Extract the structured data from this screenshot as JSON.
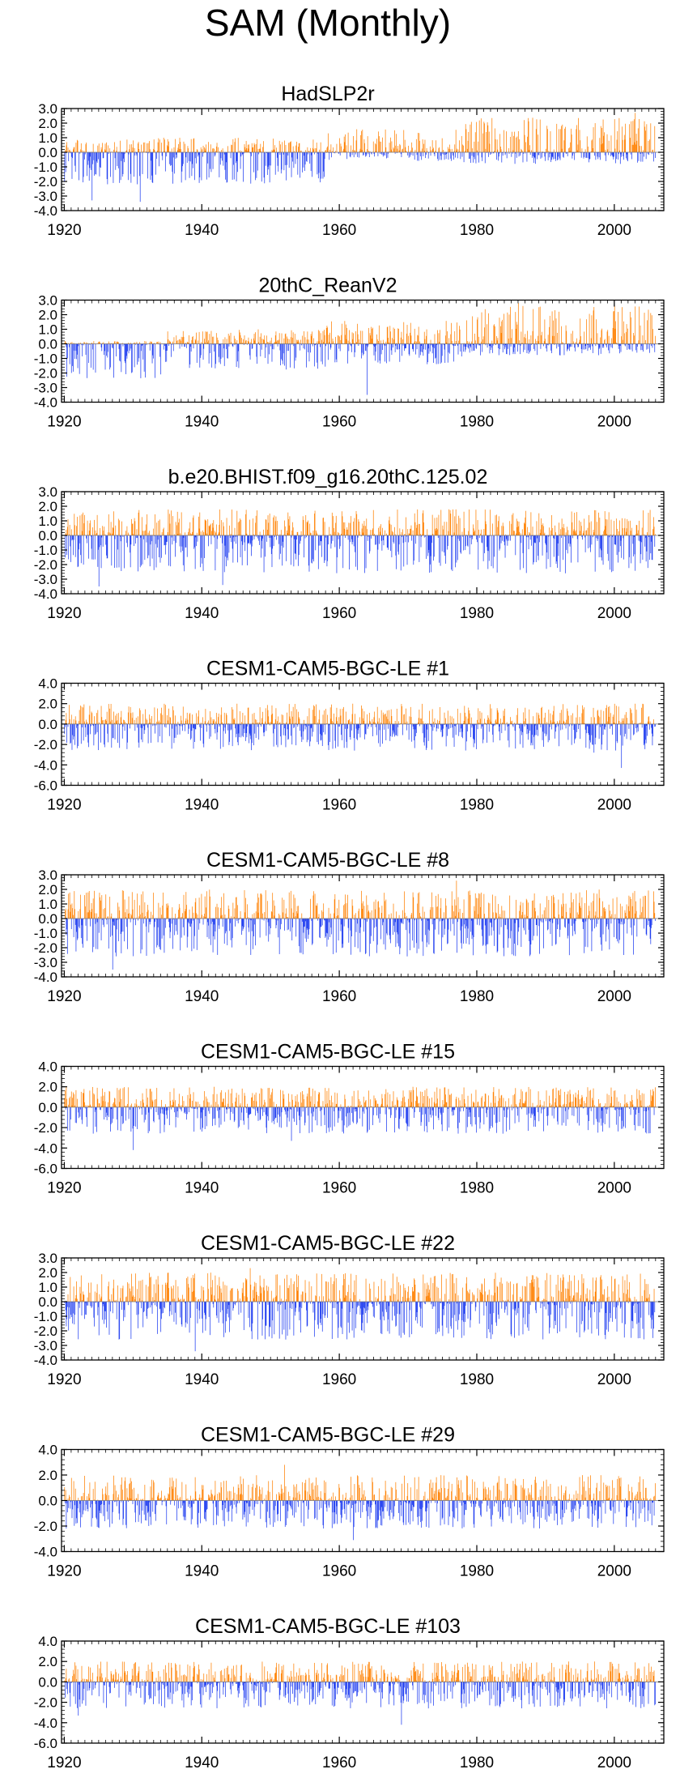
{
  "title": "SAM (Monthly)",
  "colors": {
    "positive": "#ff8000",
    "negative": "#1e3cf0",
    "axis": "#000000"
  },
  "x_ticks": [
    "1920",
    "1940",
    "1960",
    "1980",
    "2000"
  ],
  "chart_data": [
    {
      "type": "bar",
      "title": "HadSLP2r",
      "x_range": [
        1920,
        2005
      ],
      "ylim": [
        -4.0,
        3.0
      ],
      "y_ticks": [
        "3.0",
        "2.0",
        "1.0",
        "0.0",
        "-1.0",
        "-2.0",
        "-3.0",
        "-4.0"
      ],
      "y_tick_values": [
        3,
        2,
        1,
        0,
        -1,
        -2,
        -3,
        -4
      ],
      "series_shape": [
        {
          "from": 1920,
          "to": 1958,
          "pos_max": 1.0,
          "neg_max": -2.2
        },
        {
          "from": 1958,
          "to": 1978,
          "pos_max": 1.6,
          "neg_max": -0.6
        },
        {
          "from": 1978,
          "to": 2006,
          "pos_max": 2.4,
          "neg_max": -0.8
        }
      ],
      "peaks": [
        {
          "x": 1924,
          "y": -3.3
        },
        {
          "x": 1931,
          "y": -3.4
        },
        {
          "x": 2003,
          "y": 2.7
        }
      ]
    },
    {
      "type": "bar",
      "title": "20thC_ReanV2",
      "x_range": [
        1920,
        2005
      ],
      "ylim": [
        -4.0,
        3.0
      ],
      "y_ticks": [
        "3.0",
        "2.0",
        "1.0",
        "0.0",
        "-1.0",
        "-2.0",
        "-3.0",
        "-4.0"
      ],
      "y_tick_values": [
        3,
        2,
        1,
        0,
        -1,
        -2,
        -3,
        -4
      ],
      "series_shape": [
        {
          "from": 1920,
          "to": 1935,
          "pos_max": 0.2,
          "neg_max": -2.4
        },
        {
          "from": 1935,
          "to": 1958,
          "pos_max": 1.0,
          "neg_max": -1.8
        },
        {
          "from": 1958,
          "to": 1978,
          "pos_max": 1.6,
          "neg_max": -1.4
        },
        {
          "from": 1978,
          "to": 2006,
          "pos_max": 2.6,
          "neg_max": -0.8
        }
      ],
      "peaks": [
        {
          "x": 1964,
          "y": -3.5
        },
        {
          "x": 1986,
          "y": 2.8
        },
        {
          "x": 2000,
          "y": 2.6
        }
      ]
    },
    {
      "type": "bar",
      "title": "b.e20.BHIST.f09_g16.20thC.125.02",
      "x_range": [
        1920,
        2005
      ],
      "ylim": [
        -4.0,
        3.0
      ],
      "y_ticks": [
        "3.0",
        "2.0",
        "1.0",
        "0.0",
        "-1.0",
        "-2.0",
        "-3.0",
        "-4.0"
      ],
      "y_tick_values": [
        3,
        2,
        1,
        0,
        -1,
        -2,
        -3,
        -4
      ],
      "series_shape": [
        {
          "from": 1920,
          "to": 2006,
          "pos_max": 1.8,
          "neg_max": -2.6
        }
      ],
      "peaks": [
        {
          "x": 1925,
          "y": -3.5
        },
        {
          "x": 1943,
          "y": -3.4
        }
      ]
    },
    {
      "type": "bar",
      "title": "CESM1-CAM5-BGC-LE #1",
      "x_range": [
        1920,
        2005
      ],
      "ylim": [
        -6.0,
        4.0
      ],
      "y_ticks": [
        "4.0",
        "2.0",
        "0.0",
        "-2.0",
        "-4.0",
        "-6.0"
      ],
      "y_tick_values": [
        4,
        2,
        0,
        -2,
        -4,
        -6
      ],
      "series_shape": [
        {
          "from": 1920,
          "to": 2006,
          "pos_max": 2.0,
          "neg_max": -2.6
        }
      ],
      "peaks": [
        {
          "x": 2001,
          "y": -4.3
        },
        {
          "x": 1997,
          "y": -2.8
        }
      ]
    },
    {
      "type": "bar",
      "title": "CESM1-CAM5-BGC-LE #8",
      "x_range": [
        1920,
        2005
      ],
      "ylim": [
        -4.0,
        3.0
      ],
      "y_ticks": [
        "3.0",
        "2.0",
        "1.0",
        "0.0",
        "-1.0",
        "-2.0",
        "-3.0",
        "-4.0"
      ],
      "y_tick_values": [
        3,
        2,
        1,
        0,
        -1,
        -2,
        -3,
        -4
      ],
      "series_shape": [
        {
          "from": 1920,
          "to": 2006,
          "pos_max": 2.0,
          "neg_max": -2.6
        }
      ],
      "peaks": [
        {
          "x": 1927,
          "y": -3.5
        },
        {
          "x": 1977,
          "y": 2.6
        }
      ]
    },
    {
      "type": "bar",
      "title": "CESM1-CAM5-BGC-LE #15",
      "x_range": [
        1920,
        2005
      ],
      "ylim": [
        -6.0,
        4.0
      ],
      "y_ticks": [
        "4.0",
        "2.0",
        "0.0",
        "-2.0",
        "-4.0",
        "-6.0"
      ],
      "y_tick_values": [
        4,
        2,
        0,
        -2,
        -4,
        -6
      ],
      "series_shape": [
        {
          "from": 1920,
          "to": 2006,
          "pos_max": 2.0,
          "neg_max": -2.6
        }
      ],
      "peaks": [
        {
          "x": 1930,
          "y": -4.2
        },
        {
          "x": 1953,
          "y": -3.3
        }
      ]
    },
    {
      "type": "bar",
      "title": "CESM1-CAM5-BGC-LE #22",
      "x_range": [
        1920,
        2005
      ],
      "ylim": [
        -4.0,
        3.0
      ],
      "y_ticks": [
        "3.0",
        "2.0",
        "1.0",
        "0.0",
        "-1.0",
        "-2.0",
        "-3.0",
        "-4.0"
      ],
      "y_tick_values": [
        3,
        2,
        1,
        0,
        -1,
        -2,
        -3,
        -4
      ],
      "series_shape": [
        {
          "from": 1920,
          "to": 2006,
          "pos_max": 2.0,
          "neg_max": -2.6
        }
      ],
      "peaks": [
        {
          "x": 1939,
          "y": -3.4
        },
        {
          "x": 1947,
          "y": 2.3
        }
      ]
    },
    {
      "type": "bar",
      "title": "CESM1-CAM5-BGC-LE #29",
      "x_range": [
        1920,
        2005
      ],
      "ylim": [
        -4.0,
        4.0
      ],
      "y_ticks": [
        "4.0",
        "2.0",
        "0.0",
        "-2.0",
        "-4.0"
      ],
      "y_tick_values": [
        4,
        2,
        0,
        -2,
        -4
      ],
      "series_shape": [
        {
          "from": 1920,
          "to": 2006,
          "pos_max": 2.0,
          "neg_max": -2.2
        }
      ],
      "peaks": [
        {
          "x": 1962,
          "y": -3.1
        },
        {
          "x": 1952,
          "y": 2.8
        }
      ]
    },
    {
      "type": "bar",
      "title": "CESM1-CAM5-BGC-LE #103",
      "x_range": [
        1920,
        2005
      ],
      "ylim": [
        -6.0,
        4.0
      ],
      "y_ticks": [
        "4.0",
        "2.0",
        "0.0",
        "-2.0",
        "-4.0",
        "-6.0"
      ],
      "y_tick_values": [
        4,
        2,
        0,
        -2,
        -4,
        -6
      ],
      "series_shape": [
        {
          "from": 1920,
          "to": 2006,
          "pos_max": 2.0,
          "neg_max": -2.6
        }
      ],
      "peaks": [
        {
          "x": 1922,
          "y": -3.3
        },
        {
          "x": 1969,
          "y": -4.2
        }
      ]
    }
  ]
}
